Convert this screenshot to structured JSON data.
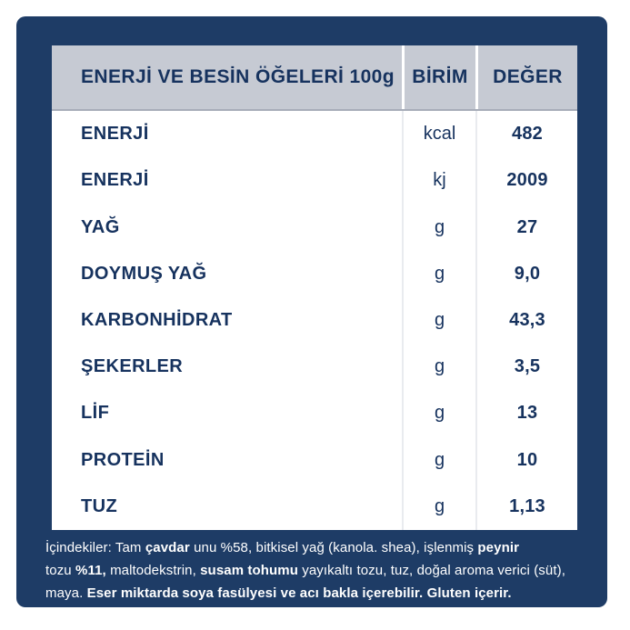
{
  "table": {
    "header": {
      "nutrients": "ENERJİ VE BESİN ÖĞELERİ 100g",
      "unit": "BİRİM",
      "value": "DEĞER"
    },
    "rows": [
      {
        "label": "ENERJİ",
        "unit": "kcal",
        "value": "482"
      },
      {
        "label": "ENERJİ",
        "unit": "kj",
        "value": "2009"
      },
      {
        "label": "YAĞ",
        "unit": "g",
        "value": "27"
      },
      {
        "label": "DOYMUŞ YAĞ",
        "unit": "g",
        "value": "9,0"
      },
      {
        "label": "KARBONHİDRAT",
        "unit": "g",
        "value": "43,3"
      },
      {
        "label": "ŞEKERLER",
        "unit": "g",
        "value": "3,5"
      },
      {
        "label": "LİF",
        "unit": "g",
        "value": "13"
      },
      {
        "label": "PROTEİN",
        "unit": "g",
        "value": "10"
      },
      {
        "label": "TUZ",
        "unit": "g",
        "value": "1,13"
      }
    ]
  },
  "ingredients": {
    "lines": [
      [
        {
          "text": "İçindekiler: Tam ",
          "bold": false
        },
        {
          "text": "çavdar",
          "bold": true
        },
        {
          "text": " unu %58, bitkisel yağ (kanola. shea), işlenmiş ",
          "bold": false
        },
        {
          "text": "peynir",
          "bold": true
        }
      ],
      [
        {
          "text": "tozu ",
          "bold": false
        },
        {
          "text": "%11,",
          "bold": true
        },
        {
          "text": " maltodekstrin, ",
          "bold": false
        },
        {
          "text": "susam tohumu",
          "bold": true
        },
        {
          "text": " yayıkaltı tozu, tuz, doğal aroma verici (süt),",
          "bold": false
        }
      ],
      [
        {
          "text": "maya. ",
          "bold": false
        },
        {
          "text": "Eser miktarda soya fasülyesi ve acı bakla içerebilir. Gluten içerir.",
          "bold": true
        }
      ]
    ]
  },
  "colors": {
    "background_navy": "#1e3c66",
    "header_grey": "#c6cad3",
    "text_navy": "#16325e",
    "body_separator": "#e9ebef",
    "header_separator": "#ffffff",
    "white": "#ffffff"
  }
}
